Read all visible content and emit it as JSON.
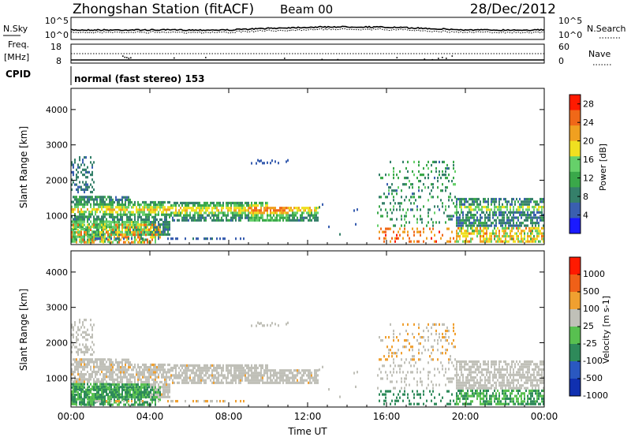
{
  "header": {
    "station": "Zhongshan Station (fitACF)",
    "beam": "Beam 00",
    "date": "28/Dec/2012"
  },
  "panels": {
    "nsky": {
      "left_label": "N.Sky",
      "right_label": "N.Search",
      "left_ticks": [
        "10^5",
        "10^0"
      ],
      "right_ticks": [
        "10^5",
        "10^0"
      ]
    },
    "freq": {
      "left_label_1": "Freq.",
      "left_label_2": "[MHz]",
      "right_label": "Nave",
      "left_ticks": [
        "18",
        "8"
      ],
      "right_ticks": [
        "60",
        "0"
      ]
    },
    "cpid": {
      "label": "CPID",
      "mode_text": "normal (fast stereo) 153"
    }
  },
  "chart_data": [
    {
      "type": "heatmap",
      "ylabel": "Slant Range [km]",
      "xlabel": "",
      "ylim": [
        180,
        4600
      ],
      "yticks": [
        "1000",
        "2000",
        "3000",
        "4000"
      ],
      "x": [
        "00:00",
        "04:00",
        "08:00",
        "12:00",
        "16:00",
        "20:00",
        "00:00"
      ],
      "colorbar": {
        "label": "Power [dB]",
        "ticks": [
          "4",
          "8",
          "12",
          "16",
          "20",
          "24",
          "28"
        ],
        "range": [
          0,
          30
        ],
        "colors": [
          "#1a1aff",
          "#3a5fb0",
          "#35806a",
          "#3aa84a",
          "#66d06a",
          "#f0e020",
          "#f0a020",
          "#f06818",
          "#ff1a00"
        ]
      }
    },
    {
      "type": "heatmap",
      "ylabel": "Slant Range [km]",
      "xlabel": "Time UT",
      "ylim": [
        180,
        4600
      ],
      "yticks": [
        "1000",
        "2000",
        "3000",
        "4000"
      ],
      "x": [
        "00:00",
        "04:00",
        "08:00",
        "12:00",
        "16:00",
        "20:00",
        "00:00"
      ],
      "colorbar": {
        "label": "Velocity [m s-1]",
        "ticks": [
          "1000",
          "500",
          "100",
          "25",
          "-25",
          "-100",
          "-500",
          "-1000"
        ],
        "colors": [
          "#1030b0",
          "#2a58c0",
          "#2e8a5a",
          "#58c050",
          "#c0c0b8",
          "#f0a030",
          "#f06018",
          "#ff1a00"
        ]
      }
    }
  ]
}
